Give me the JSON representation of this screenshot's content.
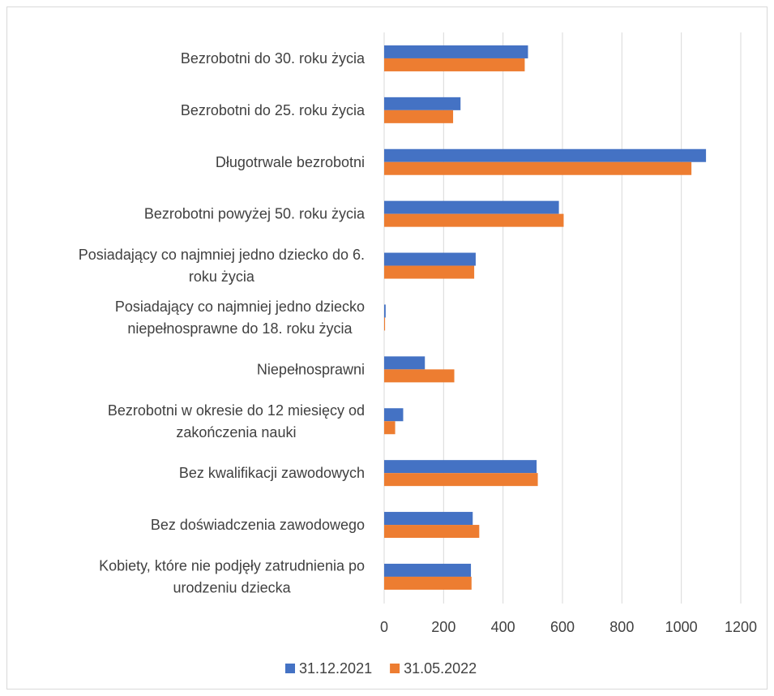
{
  "chart_data": {
    "type": "bar",
    "orientation": "horizontal",
    "title": "",
    "xlabel": "",
    "ylabel": "",
    "xlim": [
      0,
      1200
    ],
    "xticks": [
      0,
      200,
      400,
      600,
      800,
      1000,
      1200
    ],
    "grid": true,
    "legend_position": "bottom",
    "categories": [
      [
        "Bezrobotni do 30. roku życia"
      ],
      [
        "Bezrobotni do 25. roku życia"
      ],
      [
        "Długotrwale bezrobotni"
      ],
      [
        "Bezrobotni powyżej 50. roku życia"
      ],
      [
        "Posiadający co najmniej jedno dziecko do 6.",
        "roku życia"
      ],
      [
        "Posiadający co najmniej jedno dziecko",
        "niepełnosprawne do 18. roku życia"
      ],
      [
        "Niepełnosprawni"
      ],
      [
        "Bezrobotni w okresie do 12 miesięcy od",
        "zakończenia nauki"
      ],
      [
        "Bez kwalifikacji zawodowych"
      ],
      [
        "Bez doświadczenia zawodowego"
      ],
      [
        "Kobiety, które nie podjęły zatrudnienia po",
        "urodzeniu dziecka"
      ]
    ],
    "series": [
      {
        "name": "31.12.2021",
        "color": "#4472c4",
        "values": [
          484,
          257,
          1083,
          588,
          308,
          5,
          137,
          64,
          513,
          298,
          292
        ]
      },
      {
        "name": "31.05.2022",
        "color": "#ed7d31",
        "values": [
          473,
          232,
          1034,
          604,
          303,
          3,
          236,
          37,
          517,
          320,
          294
        ]
      }
    ]
  }
}
